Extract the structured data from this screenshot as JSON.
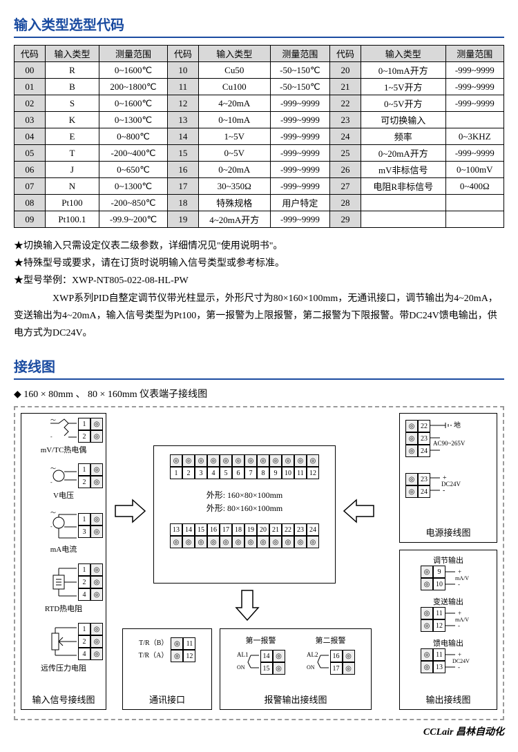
{
  "title1": "输入类型选型代码",
  "table": {
    "headers": [
      "代码",
      "输入类型",
      "测量范围",
      "代码",
      "输入类型",
      "测量范围",
      "代码",
      "输入类型",
      "测量范围"
    ],
    "rows": [
      [
        "00",
        "R",
        "0~1600℃",
        "10",
        "Cu50",
        "-50~150℃",
        "20",
        "0~10mA开方",
        "-999~9999"
      ],
      [
        "01",
        "B",
        "200~1800℃",
        "11",
        "Cu100",
        "-50~150℃",
        "21",
        "1~5V开方",
        "-999~9999"
      ],
      [
        "02",
        "S",
        "0~1600℃",
        "12",
        "4~20mA",
        "-999~9999",
        "22",
        "0~5V开方",
        "-999~9999"
      ],
      [
        "03",
        "K",
        "0~1300℃",
        "13",
        "0~10mA",
        "-999~9999",
        "23",
        "可切换输入",
        ""
      ],
      [
        "04",
        "E",
        "0~800℃",
        "14",
        "1~5V",
        "-999~9999",
        "24",
        "频率",
        "0~3KHZ"
      ],
      [
        "05",
        "T",
        "-200~400℃",
        "15",
        "0~5V",
        "-999~9999",
        "25",
        "0~20mA开方",
        "-999~9999"
      ],
      [
        "06",
        "J",
        "0~650℃",
        "16",
        "0~20mA",
        "-999~9999",
        "26",
        "mV非标信号",
        "0~100mV"
      ],
      [
        "07",
        "N",
        "0~1300℃",
        "17",
        "30~350Ω",
        "-999~9999",
        "27",
        "电阻R非标信号",
        "0~400Ω"
      ],
      [
        "08",
        "Pt100",
        "-200~850℃",
        "18",
        "特殊规格",
        "用户特定",
        "28",
        "",
        ""
      ],
      [
        "09",
        "Pt100.1",
        "-99.9~200℃",
        "19",
        "4~20mA开方",
        "-999~9999",
        "29",
        "",
        ""
      ]
    ]
  },
  "notes": {
    "n1": "★切换输入只需设定仪表二级参数，详细情况见\"使用说明书\"。",
    "n2": "★特殊型号或要求，请在订货时说明输入信号类型或参考标准。",
    "n3": "★型号举例：XWP-NT805-022-08-HL-PW",
    "n4": "　　　　XWP系列PID自整定调节仪带光柱显示，外形尺寸为80×160×100mm，无通讯接口，调节输出为4~20mA，变送输出为4~20mA，输入信号类型为Pt100，第一报警为上限报警，第二报警为下限报警。带DC24V馈电输出，供电方式为DC24V。"
  },
  "title2": "接线图",
  "subtitle": "◆ 160 × 80mm 、 80 × 160mm 仪表端子接线图",
  "diagram": {
    "inputPanel": "输入信号接线图",
    "commPanel": "通讯接口",
    "alarmPanel": "报警输出接线图",
    "powerPanel": "电源接线图",
    "outputPanel": "输出接线图",
    "center1": "外形: 160×80×100mm",
    "center2": "外形: 80×160×100mm",
    "mvtc": "mV/TC热电偶",
    "vVolt": "V电压",
    "mA": "mA电流",
    "rtd": "RTD热电阻",
    "remote": "远传压力电阻",
    "tr_b": "T/R（B）",
    "tr_a": "T/R（A）",
    "alarm1": "第一报警",
    "alarm2": "第二报警",
    "al1": "AL1",
    "al2": "AL2",
    "on": "ON",
    "ground": "地",
    "ac": "AC90~265V",
    "dc24v": "DC24V",
    "tune": "调节输出",
    "mav": "mA/V",
    "trans": "变送输出",
    "feed": "馈电输出"
  },
  "footer": "CCLair 昌林自动化",
  "colors": {
    "titleColor": "#1a4ba0",
    "grayBg": "#d9d9d9"
  }
}
